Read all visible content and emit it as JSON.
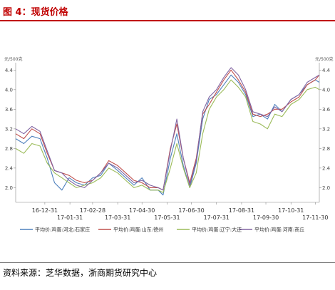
{
  "header": {
    "title": "图 4：现货价格"
  },
  "source": "资料来源：芝华数据，浙商期货研究中心",
  "chart_data": {
    "type": "line",
    "title": "",
    "y_unit_left": "元/500克",
    "y_unit_right": "元/500克",
    "ylim": [
      1.7,
      4.55
    ],
    "yticks": [
      2.0,
      2.4,
      2.8,
      3.2,
      3.6,
      4.0,
      4.4
    ],
    "ytick_labels": [
      "2.0",
      "2.4",
      "2.8",
      "3.2",
      "3.6",
      "4.0",
      "4.4"
    ],
    "xlim": [
      "2016-11-25",
      "2017-12-05"
    ],
    "xticks": [
      "2016-12-31",
      "2017-01-31",
      "2017-02-28",
      "2017-03-31",
      "2017-04-30",
      "2017-05-31",
      "2017-06-30",
      "2017-07-31",
      "2017-08-31",
      "2017-09-30",
      "2017-10-31",
      "2017-11-30"
    ],
    "xtick_labels": [
      "16-12-31",
      "17-01-31",
      "17-02-28",
      "17-03-31",
      "17-04-30",
      "17-05-31",
      "17-06-30",
      "17-07-31",
      "17-08-31",
      "17-09-30",
      "17-10-31",
      "17-11-30"
    ],
    "grid": false,
    "legend_position": "bottom",
    "colors": [
      "#4f81bd",
      "#c0504d",
      "#9bbb59",
      "#8064a2"
    ],
    "series": [
      {
        "name": "平均价:鸡蛋:河北:石家庄",
        "x": [
          "2016-11-25",
          "2016-12-05",
          "2016-12-15",
          "2016-12-25",
          "2017-01-03",
          "2017-01-12",
          "2017-01-21",
          "2017-01-30",
          "2017-02-08",
          "2017-02-18",
          "2017-02-28",
          "2017-03-10",
          "2017-03-20",
          "2017-03-31",
          "2017-04-10",
          "2017-04-20",
          "2017-04-30",
          "2017-05-10",
          "2017-05-20",
          "2017-05-26",
          "2017-06-04",
          "2017-06-12",
          "2017-06-20",
          "2017-06-28",
          "2017-07-06",
          "2017-07-14",
          "2017-07-22",
          "2017-07-31",
          "2017-08-09",
          "2017-08-18",
          "2017-08-27",
          "2017-09-05",
          "2017-09-14",
          "2017-09-23",
          "2017-10-02",
          "2017-10-11",
          "2017-10-20",
          "2017-10-31",
          "2017-11-10",
          "2017-11-20",
          "2017-11-30",
          "2017-12-05"
        ],
        "y": [
          3.0,
          2.9,
          3.05,
          3.0,
          2.6,
          2.1,
          1.95,
          2.2,
          2.1,
          2.05,
          2.2,
          2.25,
          2.5,
          2.35,
          2.2,
          2.05,
          2.2,
          1.95,
          1.95,
          1.85,
          2.6,
          3.1,
          2.45,
          2.0,
          2.5,
          3.4,
          3.8,
          3.9,
          4.1,
          4.3,
          4.15,
          3.9,
          3.45,
          3.5,
          3.4,
          3.7,
          3.55,
          3.8,
          3.9,
          4.1,
          4.2,
          4.15
        ]
      },
      {
        "name": "平均价:鸡蛋:山东:德州",
        "x": [
          "2016-11-25",
          "2016-12-05",
          "2016-12-15",
          "2016-12-25",
          "2017-01-03",
          "2017-01-12",
          "2017-01-21",
          "2017-01-30",
          "2017-02-08",
          "2017-02-18",
          "2017-02-28",
          "2017-03-10",
          "2017-03-20",
          "2017-03-31",
          "2017-04-10",
          "2017-04-20",
          "2017-04-30",
          "2017-05-10",
          "2017-05-20",
          "2017-05-26",
          "2017-06-04",
          "2017-06-12",
          "2017-06-20",
          "2017-06-28",
          "2017-07-06",
          "2017-07-14",
          "2017-07-22",
          "2017-07-31",
          "2017-08-09",
          "2017-08-18",
          "2017-08-27",
          "2017-09-05",
          "2017-09-14",
          "2017-09-23",
          "2017-10-02",
          "2017-10-11",
          "2017-10-20",
          "2017-10-31",
          "2017-11-10",
          "2017-11-20",
          "2017-11-30",
          "2017-12-05"
        ],
        "y": [
          3.1,
          3.0,
          3.2,
          3.1,
          2.7,
          2.35,
          2.3,
          2.25,
          2.15,
          2.1,
          2.15,
          2.3,
          2.55,
          2.45,
          2.3,
          2.15,
          2.1,
          2.0,
          2.0,
          1.95,
          2.8,
          3.3,
          2.6,
          2.1,
          2.6,
          3.5,
          3.7,
          3.95,
          4.2,
          4.4,
          4.2,
          3.95,
          3.5,
          3.45,
          3.5,
          3.6,
          3.6,
          3.75,
          3.85,
          4.1,
          4.2,
          4.3
        ]
      },
      {
        "name": "平均价:鸡蛋:辽宁:大连",
        "x": [
          "2016-11-25",
          "2016-12-05",
          "2016-12-15",
          "2016-12-25",
          "2017-01-03",
          "2017-01-12",
          "2017-01-21",
          "2017-01-30",
          "2017-02-08",
          "2017-02-18",
          "2017-02-28",
          "2017-03-10",
          "2017-03-20",
          "2017-03-31",
          "2017-04-10",
          "2017-04-20",
          "2017-04-30",
          "2017-05-10",
          "2017-05-20",
          "2017-05-26",
          "2017-06-04",
          "2017-06-12",
          "2017-06-20",
          "2017-06-28",
          "2017-07-06",
          "2017-07-14",
          "2017-07-22",
          "2017-07-31",
          "2017-08-09",
          "2017-08-18",
          "2017-08-27",
          "2017-09-05",
          "2017-09-14",
          "2017-09-23",
          "2017-10-02",
          "2017-10-11",
          "2017-10-20",
          "2017-10-31",
          "2017-11-10",
          "2017-11-20",
          "2017-11-30",
          "2017-12-05"
        ],
        "y": [
          2.8,
          2.7,
          2.9,
          2.85,
          2.5,
          2.3,
          2.2,
          2.1,
          2.0,
          2.05,
          2.1,
          2.2,
          2.4,
          2.3,
          2.15,
          2.0,
          2.05,
          1.95,
          1.95,
          1.9,
          2.4,
          2.9,
          2.4,
          2.0,
          2.3,
          3.1,
          3.6,
          3.85,
          4.0,
          4.2,
          4.05,
          3.85,
          3.35,
          3.3,
          3.2,
          3.5,
          3.45,
          3.7,
          3.8,
          4.0,
          4.05,
          4.0
        ]
      },
      {
        "name": "平均价:鸡蛋:河南:商丘",
        "x": [
          "2016-11-25",
          "2016-12-05",
          "2016-12-15",
          "2016-12-25",
          "2017-01-03",
          "2017-01-12",
          "2017-01-21",
          "2017-01-30",
          "2017-02-08",
          "2017-02-18",
          "2017-02-28",
          "2017-03-10",
          "2017-03-20",
          "2017-03-31",
          "2017-04-10",
          "2017-04-20",
          "2017-04-30",
          "2017-05-10",
          "2017-05-20",
          "2017-05-26",
          "2017-06-04",
          "2017-06-12",
          "2017-06-20",
          "2017-06-28",
          "2017-07-06",
          "2017-07-14",
          "2017-07-22",
          "2017-07-31",
          "2017-08-09",
          "2017-08-18",
          "2017-08-27",
          "2017-09-05",
          "2017-09-14",
          "2017-09-23",
          "2017-10-02",
          "2017-10-11",
          "2017-10-20",
          "2017-10-31",
          "2017-11-10",
          "2017-11-20",
          "2017-11-30",
          "2017-12-05"
        ],
        "y": [
          3.2,
          3.1,
          3.25,
          3.15,
          2.75,
          2.35,
          2.3,
          2.15,
          2.05,
          2.0,
          2.15,
          2.3,
          2.5,
          2.4,
          2.25,
          2.1,
          2.15,
          2.05,
          2.0,
          1.95,
          2.75,
          3.4,
          2.6,
          2.05,
          2.55,
          3.55,
          3.85,
          4.0,
          4.25,
          4.45,
          4.3,
          4.0,
          3.55,
          3.5,
          3.45,
          3.65,
          3.55,
          3.8,
          3.9,
          4.15,
          4.25,
          4.3
        ]
      }
    ]
  }
}
